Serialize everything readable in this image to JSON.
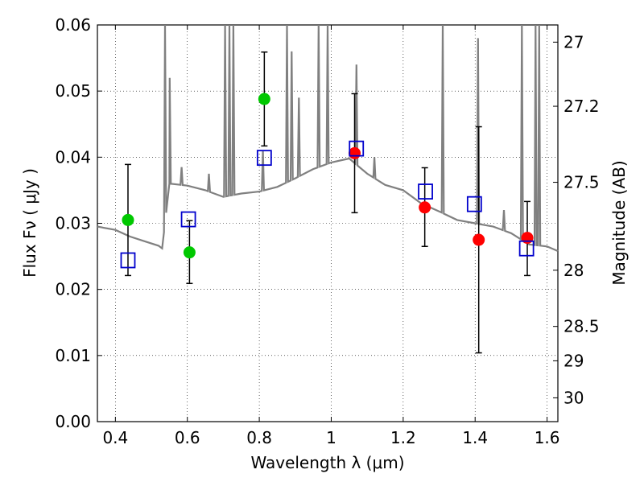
{
  "chart_data": {
    "type": "scatter",
    "xlabel": "Wavelength  λ (μm)",
    "ylabel": "Flux  Fν  ( μJy )",
    "ylabel_right": "Magnitude (AB)",
    "xlim": [
      0.35,
      1.63
    ],
    "ylim": [
      0,
      0.06
    ],
    "grid": true,
    "x_ticks": [
      0.4,
      0.6,
      0.8,
      1.0,
      1.2,
      1.4,
      1.6
    ],
    "x_tick_labels": [
      "0.4",
      "0.6",
      "0.8",
      "1",
      "1.2",
      "1.4",
      "1.6"
    ],
    "y_ticks": [
      0,
      0.01,
      0.02,
      0.03,
      0.04,
      0.05,
      0.06
    ],
    "y_tick_labels": [
      "0.00",
      "0.01",
      "0.02",
      "0.03",
      "0.04",
      "0.05",
      "0.06"
    ],
    "right_ticks": [
      {
        "label": "27",
        "flux": 0.0574
      },
      {
        "label": "27.2",
        "flux": 0.0477
      },
      {
        "label": "27.5",
        "flux": 0.0362
      },
      {
        "label": "28",
        "flux": 0.0229
      },
      {
        "label": "28.5",
        "flux": 0.0144
      },
      {
        "label": "29",
        "flux": 0.0092
      },
      {
        "label": "30",
        "flux": 0.0036
      }
    ],
    "series": [
      {
        "name": "",
        "marker": "circle",
        "color": "#00c800",
        "points": [
          {
            "x": 0.435,
            "y": 0.0305,
            "ylo": 0.0221,
            "yhi": 0.0389
          },
          {
            "x": 0.606,
            "y": 0.0256,
            "ylo": 0.0209,
            "yhi": 0.0304
          },
          {
            "x": 0.814,
            "y": 0.0488,
            "ylo": 0.0417,
            "yhi": 0.0559
          }
        ]
      },
      {
        "name": "",
        "marker": "circle",
        "color": "#ff0000",
        "points": [
          {
            "x": 1.065,
            "y": 0.0406,
            "ylo": 0.0316,
            "yhi": 0.0496
          },
          {
            "x": 1.26,
            "y": 0.0324,
            "ylo": 0.0265,
            "yhi": 0.0384
          },
          {
            "x": 1.41,
            "y": 0.0275,
            "ylo": 0.0104,
            "yhi": 0.0446
          },
          {
            "x": 1.545,
            "y": 0.0278,
            "ylo": 0.0221,
            "yhi": 0.0333
          }
        ]
      },
      {
        "name": "",
        "marker": "square",
        "color": "#0000cc",
        "points": [
          {
            "x": 0.435,
            "y": 0.0244
          },
          {
            "x": 0.603,
            "y": 0.0306
          },
          {
            "x": 0.814,
            "y": 0.0399
          },
          {
            "x": 1.07,
            "y": 0.0413
          },
          {
            "x": 1.262,
            "y": 0.0348
          },
          {
            "x": 1.398,
            "y": 0.0329
          },
          {
            "x": 1.543,
            "y": 0.0262
          }
        ]
      }
    ],
    "model_sed": {
      "color": "#808080",
      "continuum": [
        [
          0.35,
          0.0295
        ],
        [
          0.4,
          0.029
        ],
        [
          0.44,
          0.028
        ],
        [
          0.48,
          0.0273
        ],
        [
          0.52,
          0.0266
        ],
        [
          0.53,
          0.0262
        ],
        [
          0.55,
          0.036
        ],
        [
          0.6,
          0.0357
        ],
        [
          0.65,
          0.035
        ],
        [
          0.7,
          0.034
        ],
        [
          0.75,
          0.0345
        ],
        [
          0.8,
          0.0348
        ],
        [
          0.85,
          0.0355
        ],
        [
          0.9,
          0.0368
        ],
        [
          0.95,
          0.0382
        ],
        [
          1.0,
          0.0392
        ],
        [
          1.05,
          0.0398
        ],
        [
          1.1,
          0.0375
        ],
        [
          1.15,
          0.0358
        ],
        [
          1.2,
          0.035
        ],
        [
          1.25,
          0.033
        ],
        [
          1.3,
          0.0318
        ],
        [
          1.35,
          0.0305
        ],
        [
          1.4,
          0.03
        ],
        [
          1.45,
          0.0295
        ],
        [
          1.5,
          0.0285
        ],
        [
          1.55,
          0.0268
        ],
        [
          1.6,
          0.0265
        ],
        [
          1.63,
          0.0258
        ]
      ],
      "emission_lines": [
        [
          0.538,
          0.06
        ],
        [
          0.551,
          0.052
        ],
        [
          0.584,
          0.0385
        ],
        [
          0.66,
          0.0375
        ],
        [
          0.705,
          0.06
        ],
        [
          0.717,
          0.06
        ],
        [
          0.728,
          0.06
        ],
        [
          0.81,
          0.041
        ],
        [
          0.877,
          0.06
        ],
        [
          0.89,
          0.056
        ],
        [
          0.91,
          0.049
        ],
        [
          0.965,
          0.06
        ],
        [
          0.99,
          0.06
        ],
        [
          1.07,
          0.054
        ],
        [
          1.12,
          0.04
        ],
        [
          1.31,
          0.06
        ],
        [
          1.408,
          0.058
        ],
        [
          1.48,
          0.032
        ],
        [
          1.53,
          0.06
        ],
        [
          1.568,
          0.06
        ],
        [
          1.578,
          0.06
        ]
      ]
    }
  }
}
